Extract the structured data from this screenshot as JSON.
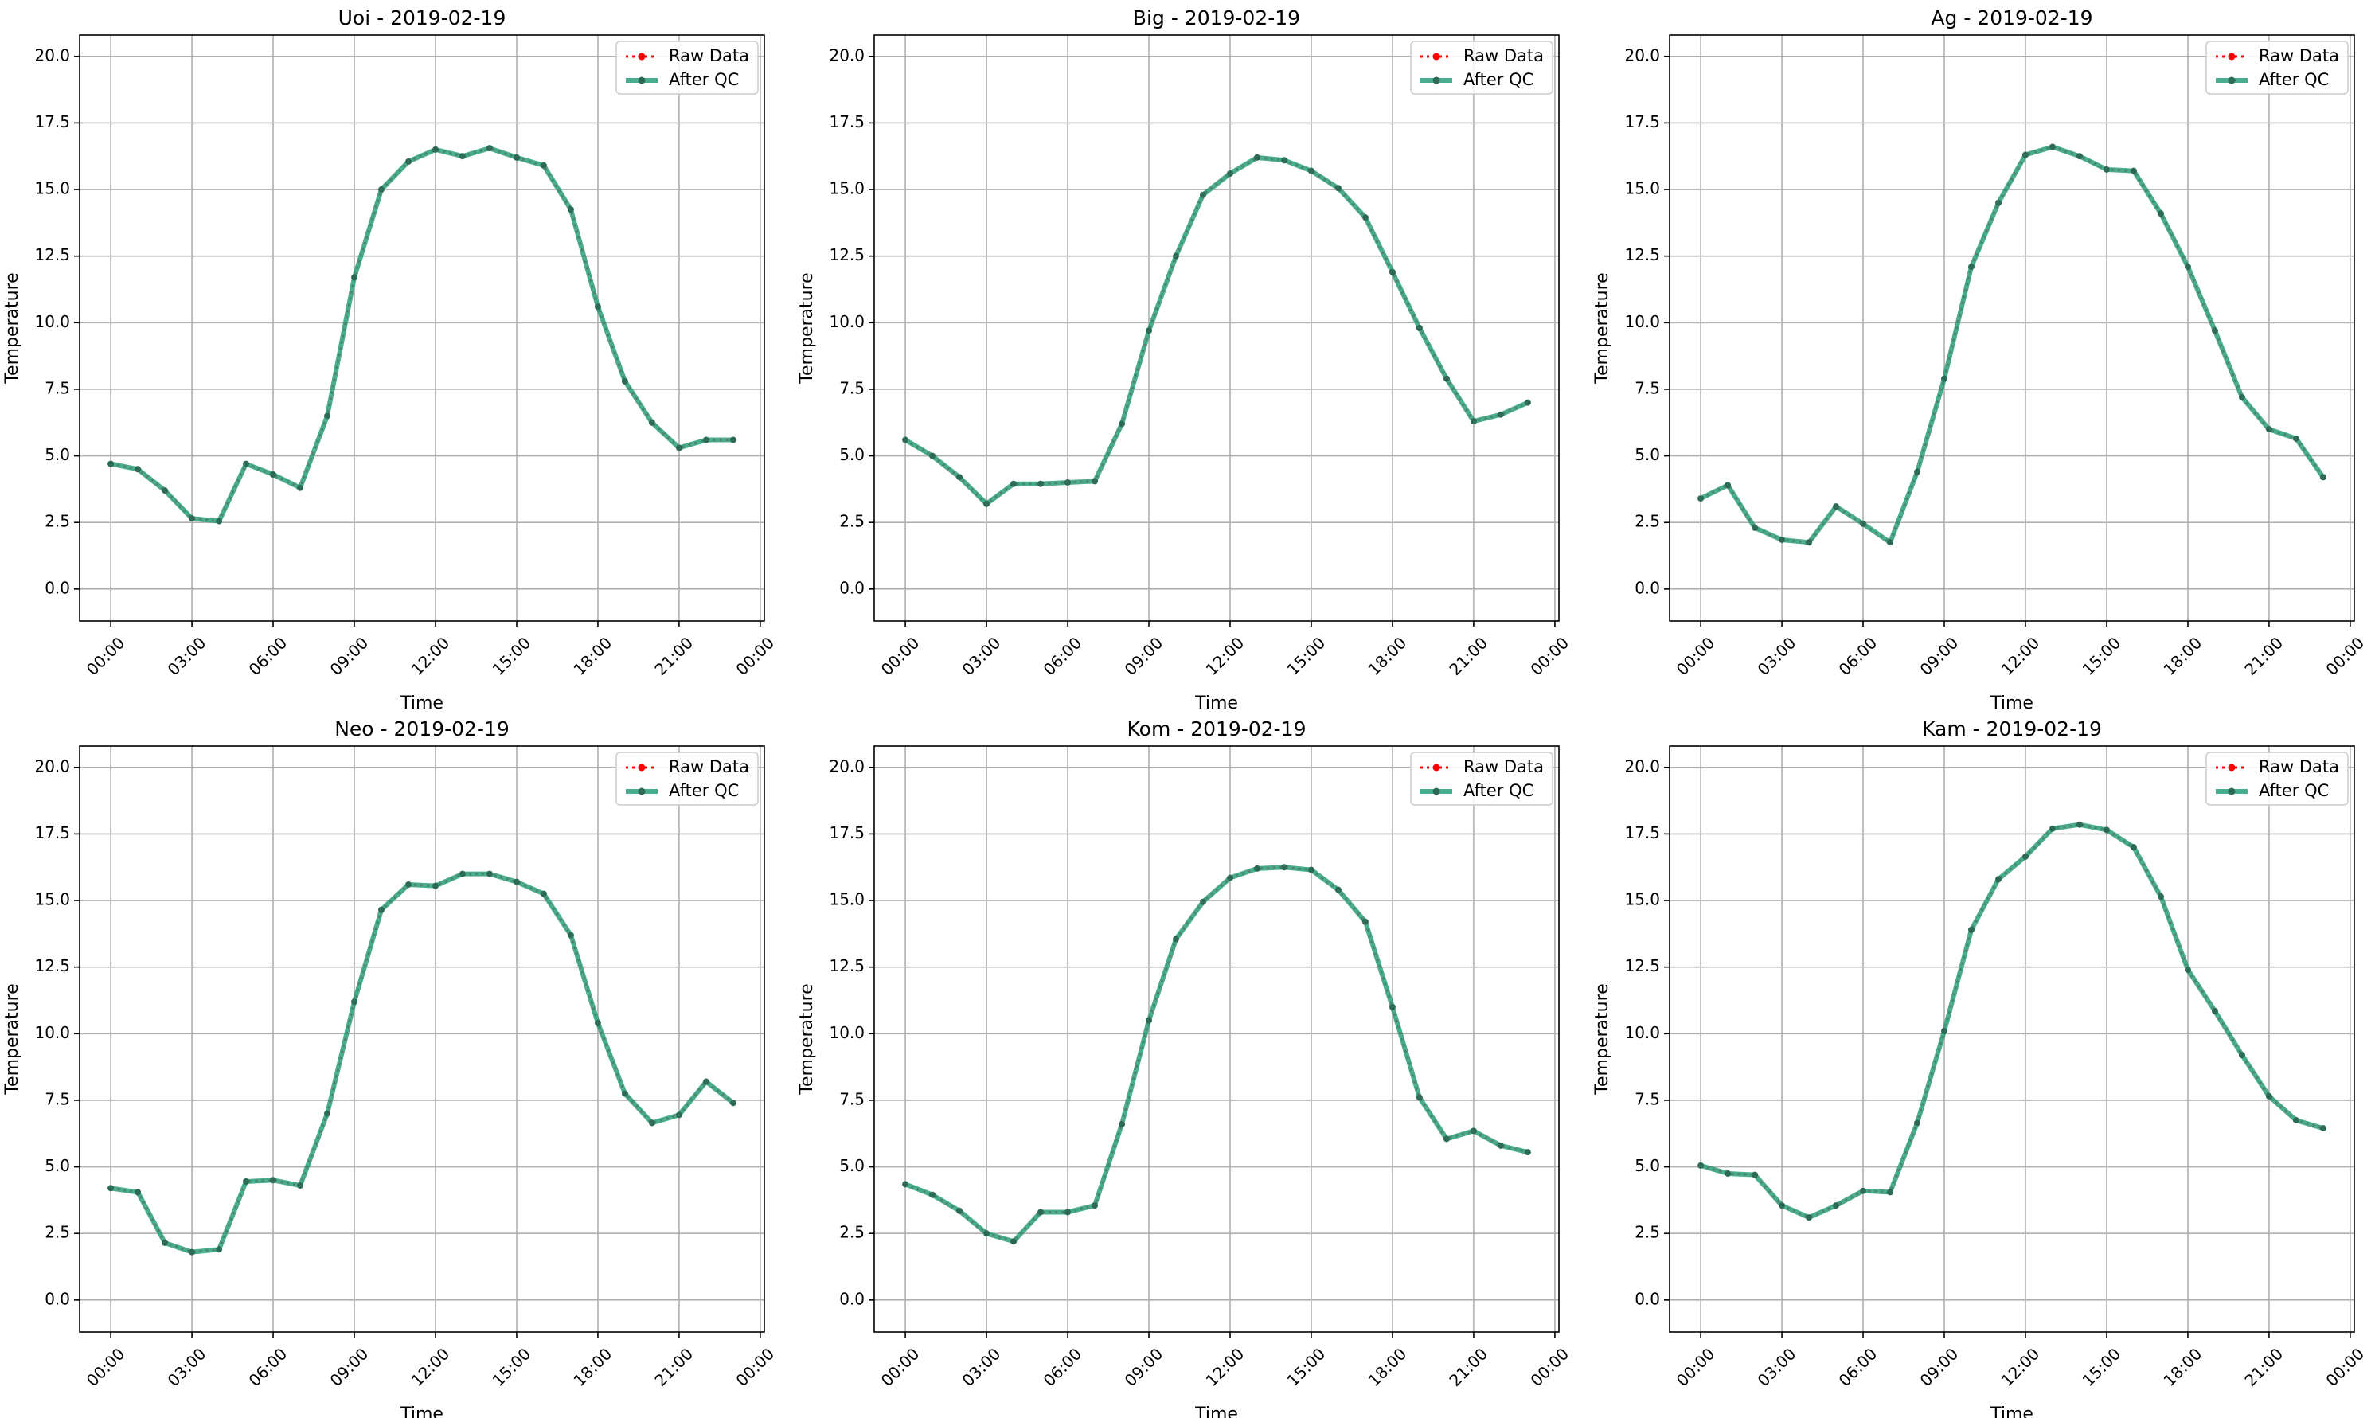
{
  "figure": {
    "background": "#ffffff"
  },
  "style": {
    "raw_color": "#ff0000",
    "qc_color": "#2a9d7a",
    "qc_marker_color": "#2e6b55",
    "grid_color": "#b0b0b0"
  },
  "chart_data": [
    {
      "type": "line",
      "title": "Uoi - 2019-02-19",
      "xlabel": "Time",
      "ylabel": "Temperature",
      "x_hours": [
        0,
        1,
        2,
        3,
        4,
        5,
        6,
        7,
        8,
        9,
        10,
        11,
        12,
        13,
        14,
        15,
        16,
        17,
        18,
        19,
        20,
        21,
        22,
        23
      ],
      "xticks": [
        "00:00",
        "03:00",
        "06:00",
        "09:00",
        "12:00",
        "15:00",
        "18:00",
        "21:00",
        "00:00"
      ],
      "yticks": [
        "0.0",
        "2.5",
        "5.0",
        "7.5",
        "10.0",
        "12.5",
        "15.0",
        "17.5",
        "20.0"
      ],
      "ylim": [
        -1.2,
        20.8
      ],
      "grid": true,
      "legend_position": "top-right",
      "series": [
        {
          "name": "Raw Data",
          "values": [
            4.7,
            4.5,
            3.7,
            2.65,
            2.55,
            4.7,
            4.3,
            3.8,
            6.5,
            11.7,
            15.0,
            16.05,
            16.5,
            16.25,
            16.55,
            16.2,
            15.9,
            14.25,
            10.6,
            7.8,
            6.25,
            5.3,
            5.6,
            5.6
          ]
        },
        {
          "name": "After QC",
          "values": [
            4.7,
            4.5,
            3.7,
            2.65,
            2.55,
            4.7,
            4.3,
            3.8,
            6.5,
            11.7,
            15.0,
            16.05,
            16.5,
            16.25,
            16.55,
            16.2,
            15.9,
            14.25,
            10.6,
            7.8,
            6.25,
            5.3,
            5.6,
            5.6
          ]
        }
      ]
    },
    {
      "type": "line",
      "title": "Big - 2019-02-19",
      "xlabel": "Time",
      "ylabel": "Temperature",
      "x_hours": [
        0,
        1,
        2,
        3,
        4,
        5,
        6,
        7,
        8,
        9,
        10,
        11,
        12,
        13,
        14,
        15,
        16,
        17,
        18,
        19,
        20,
        21,
        22,
        23
      ],
      "xticks": [
        "00:00",
        "03:00",
        "06:00",
        "09:00",
        "12:00",
        "15:00",
        "18:00",
        "21:00",
        "00:00"
      ],
      "yticks": [
        "0.0",
        "2.5",
        "5.0",
        "7.5",
        "10.0",
        "12.5",
        "15.0",
        "17.5",
        "20.0"
      ],
      "ylim": [
        -1.2,
        20.8
      ],
      "grid": true,
      "legend_position": "top-right",
      "series": [
        {
          "name": "Raw Data",
          "values": [
            5.6,
            5.0,
            4.2,
            3.2,
            3.95,
            3.95,
            4.0,
            4.05,
            6.2,
            9.7,
            12.5,
            14.8,
            15.6,
            16.2,
            16.1,
            15.7,
            15.05,
            13.95,
            11.9,
            9.8,
            7.9,
            6.3,
            6.55,
            7.0
          ]
        },
        {
          "name": "After QC",
          "values": [
            5.6,
            5.0,
            4.2,
            3.2,
            3.95,
            3.95,
            4.0,
            4.05,
            6.2,
            9.7,
            12.5,
            14.8,
            15.6,
            16.2,
            16.1,
            15.7,
            15.05,
            13.95,
            11.9,
            9.8,
            7.9,
            6.3,
            6.55,
            7.0
          ]
        }
      ]
    },
    {
      "type": "line",
      "title": "Ag - 2019-02-19",
      "xlabel": "Time",
      "ylabel": "Temperature",
      "x_hours": [
        0,
        1,
        2,
        3,
        4,
        5,
        6,
        7,
        8,
        9,
        10,
        11,
        12,
        13,
        14,
        15,
        16,
        17,
        18,
        19,
        20,
        21,
        22,
        23
      ],
      "xticks": [
        "00:00",
        "03:00",
        "06:00",
        "09:00",
        "12:00",
        "15:00",
        "18:00",
        "21:00",
        "00:00"
      ],
      "yticks": [
        "0.0",
        "2.5",
        "5.0",
        "7.5",
        "10.0",
        "12.5",
        "15.0",
        "17.5",
        "20.0"
      ],
      "ylim": [
        -1.2,
        20.8
      ],
      "grid": true,
      "legend_position": "top-right",
      "series": [
        {
          "name": "Raw Data",
          "values": [
            3.4,
            3.9,
            2.3,
            1.85,
            1.75,
            3.1,
            2.45,
            1.75,
            4.4,
            7.9,
            12.1,
            14.5,
            16.3,
            16.6,
            16.25,
            15.75,
            15.7,
            14.1,
            12.1,
            9.7,
            7.2,
            6.0,
            5.65,
            4.2
          ]
        },
        {
          "name": "After QC",
          "values": [
            3.4,
            3.9,
            2.3,
            1.85,
            1.75,
            3.1,
            2.45,
            1.75,
            4.4,
            7.9,
            12.1,
            14.5,
            16.3,
            16.6,
            16.25,
            15.75,
            15.7,
            14.1,
            12.1,
            9.7,
            7.2,
            6.0,
            5.65,
            4.2
          ]
        }
      ]
    },
    {
      "type": "line",
      "title": "Neo - 2019-02-19",
      "xlabel": "Time",
      "ylabel": "Temperature",
      "x_hours": [
        0,
        1,
        2,
        3,
        4,
        5,
        6,
        7,
        8,
        9,
        10,
        11,
        12,
        13,
        14,
        15,
        16,
        17,
        18,
        19,
        20,
        21,
        22,
        23
      ],
      "xticks": [
        "00:00",
        "03:00",
        "06:00",
        "09:00",
        "12:00",
        "15:00",
        "18:00",
        "21:00",
        "00:00"
      ],
      "yticks": [
        "0.0",
        "2.5",
        "5.0",
        "7.5",
        "10.0",
        "12.5",
        "15.0",
        "17.5",
        "20.0"
      ],
      "ylim": [
        -1.2,
        20.8
      ],
      "grid": true,
      "legend_position": "top-right",
      "series": [
        {
          "name": "Raw Data",
          "values": [
            4.2,
            4.05,
            2.15,
            1.8,
            1.9,
            4.45,
            4.5,
            4.3,
            7.0,
            11.2,
            14.65,
            15.6,
            15.55,
            16.0,
            16.0,
            15.7,
            15.25,
            13.7,
            10.4,
            7.75,
            6.65,
            6.95,
            8.2,
            7.4
          ]
        },
        {
          "name": "After QC",
          "values": [
            4.2,
            4.05,
            2.15,
            1.8,
            1.9,
            4.45,
            4.5,
            4.3,
            7.0,
            11.2,
            14.65,
            15.6,
            15.55,
            16.0,
            16.0,
            15.7,
            15.25,
            13.7,
            10.4,
            7.75,
            6.65,
            6.95,
            8.2,
            7.4
          ]
        }
      ]
    },
    {
      "type": "line",
      "title": "Kom - 2019-02-19",
      "xlabel": "Time",
      "ylabel": "Temperature",
      "x_hours": [
        0,
        1,
        2,
        3,
        4,
        5,
        6,
        7,
        8,
        9,
        10,
        11,
        12,
        13,
        14,
        15,
        16,
        17,
        18,
        19,
        20,
        21,
        22,
        23
      ],
      "xticks": [
        "00:00",
        "03:00",
        "06:00",
        "09:00",
        "12:00",
        "15:00",
        "18:00",
        "21:00",
        "00:00"
      ],
      "yticks": [
        "0.0",
        "2.5",
        "5.0",
        "7.5",
        "10.0",
        "12.5",
        "15.0",
        "17.5",
        "20.0"
      ],
      "ylim": [
        -1.2,
        20.8
      ],
      "grid": true,
      "legend_position": "top-right",
      "series": [
        {
          "name": "Raw Data",
          "values": [
            4.35,
            3.95,
            3.35,
            2.5,
            2.2,
            3.3,
            3.3,
            3.55,
            6.6,
            10.5,
            13.55,
            14.95,
            15.85,
            16.2,
            16.25,
            16.15,
            15.4,
            14.2,
            11.0,
            7.6,
            6.05,
            6.35,
            5.8,
            5.55
          ]
        },
        {
          "name": "After QC",
          "values": [
            4.35,
            3.95,
            3.35,
            2.5,
            2.2,
            3.3,
            3.3,
            3.55,
            6.6,
            10.5,
            13.55,
            14.95,
            15.85,
            16.2,
            16.25,
            16.15,
            15.4,
            14.2,
            11.0,
            7.6,
            6.05,
            6.35,
            5.8,
            5.55
          ]
        }
      ]
    },
    {
      "type": "line",
      "title": "Kam - 2019-02-19",
      "xlabel": "Time",
      "ylabel": "Temperature",
      "x_hours": [
        0,
        1,
        2,
        3,
        4,
        5,
        6,
        7,
        8,
        9,
        10,
        11,
        12,
        13,
        14,
        15,
        16,
        17,
        18,
        19,
        20,
        21,
        22,
        23
      ],
      "xticks": [
        "00:00",
        "03:00",
        "06:00",
        "09:00",
        "12:00",
        "15:00",
        "18:00",
        "21:00",
        "00:00"
      ],
      "yticks": [
        "0.0",
        "2.5",
        "5.0",
        "7.5",
        "10.0",
        "12.5",
        "15.0",
        "17.5",
        "20.0"
      ],
      "ylim": [
        -1.2,
        20.8
      ],
      "grid": true,
      "legend_position": "top-right",
      "series": [
        {
          "name": "Raw Data",
          "values": [
            5.05,
            4.75,
            4.7,
            3.55,
            3.1,
            3.55,
            4.1,
            4.05,
            6.65,
            10.1,
            13.9,
            15.8,
            16.65,
            17.7,
            17.85,
            17.65,
            17.0,
            15.15,
            12.4,
            10.85,
            9.2,
            7.65,
            6.75,
            6.45
          ]
        },
        {
          "name": "After QC",
          "values": [
            5.05,
            4.75,
            4.7,
            3.55,
            3.1,
            3.55,
            4.1,
            4.05,
            6.65,
            10.1,
            13.9,
            15.8,
            16.65,
            17.7,
            17.85,
            17.65,
            17.0,
            15.15,
            12.4,
            10.85,
            9.2,
            7.65,
            6.75,
            6.45
          ]
        }
      ]
    }
  ]
}
